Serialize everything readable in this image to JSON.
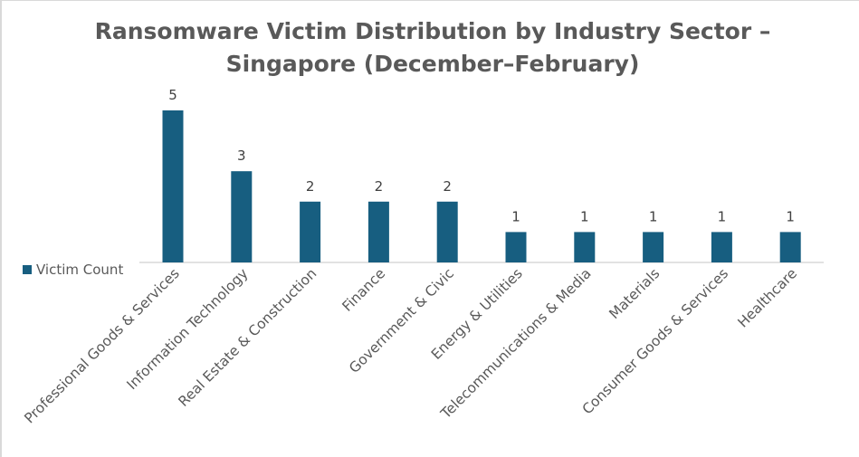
{
  "chart_data": {
    "type": "bar",
    "title": [
      "Ransomware Victim Distribution by Industry Sector –",
      "Singapore (December–February)"
    ],
    "xlabel": "",
    "ylabel": "",
    "categories": [
      "Professional Goods & Services",
      "Information Technology",
      "Real Estate & Construction",
      "Finance",
      "Government & Civic",
      "Energy & Utilities",
      "Telecommunications & Media",
      "Materials",
      "Consumer Goods & Services",
      "Healthcare"
    ],
    "series": [
      {
        "name": "Victim Count",
        "values": [
          5,
          3,
          2,
          2,
          2,
          1,
          1,
          1,
          1,
          1
        ],
        "color": "#175E80"
      }
    ],
    "ylim": [
      0,
      5
    ],
    "grid": false,
    "data_labels": true,
    "legend_position": "left"
  }
}
